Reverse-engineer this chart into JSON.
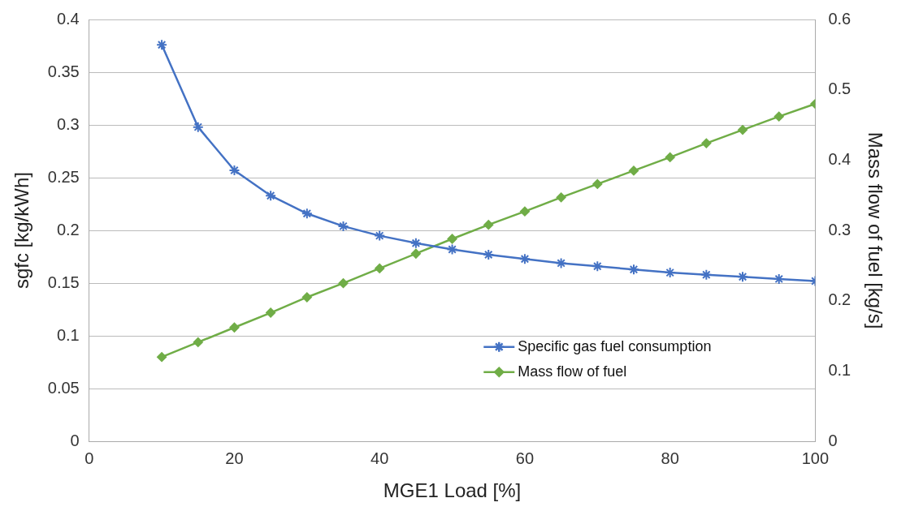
{
  "chart_data": {
    "type": "line",
    "xlabel": "MGE1 Load [%]",
    "ylabel": "sgfc [kg/kWh]",
    "y2label": "Mass flow of fuel [kg/s]",
    "x": [
      10,
      15,
      20,
      25,
      30,
      35,
      40,
      45,
      50,
      55,
      60,
      65,
      70,
      75,
      80,
      85,
      90,
      95,
      100
    ],
    "series": [
      {
        "name": "Specific gas fuel consumption",
        "color": "#4472c4",
        "marker": "cross",
        "values": [
          0.376,
          0.298,
          0.257,
          0.233,
          0.216,
          0.204,
          0.195,
          0.188,
          0.182,
          0.177,
          0.173,
          0.169,
          0.166,
          0.163,
          0.16,
          0.158,
          0.156,
          0.154,
          0.152
        ]
      },
      {
        "name": "Mass flow of fuel",
        "color": "#70ad47",
        "marker": "diamond",
        "axis": "y2",
        "values": [
          0.12,
          0.141,
          0.162,
          0.183,
          0.205,
          0.225,
          0.246,
          0.267,
          0.288,
          0.308,
          0.327,
          0.347,
          0.366,
          0.385,
          0.404,
          0.424,
          0.443,
          0.462,
          0.48
        ]
      }
    ],
    "xlim": [
      0,
      100
    ],
    "xticks": [
      0,
      20,
      40,
      60,
      80,
      100
    ],
    "ylim": [
      0,
      0.4
    ],
    "yticks": [
      0,
      0.05,
      0.1,
      0.15,
      0.2,
      0.25,
      0.3,
      0.35,
      0.4
    ],
    "y2lim": [
      0,
      0.6
    ],
    "y2ticks": [
      0,
      0.1,
      0.2,
      0.3,
      0.4,
      0.5,
      0.6
    ],
    "grid": "y",
    "legend": "bottom right",
    "line_style": "solid"
  }
}
